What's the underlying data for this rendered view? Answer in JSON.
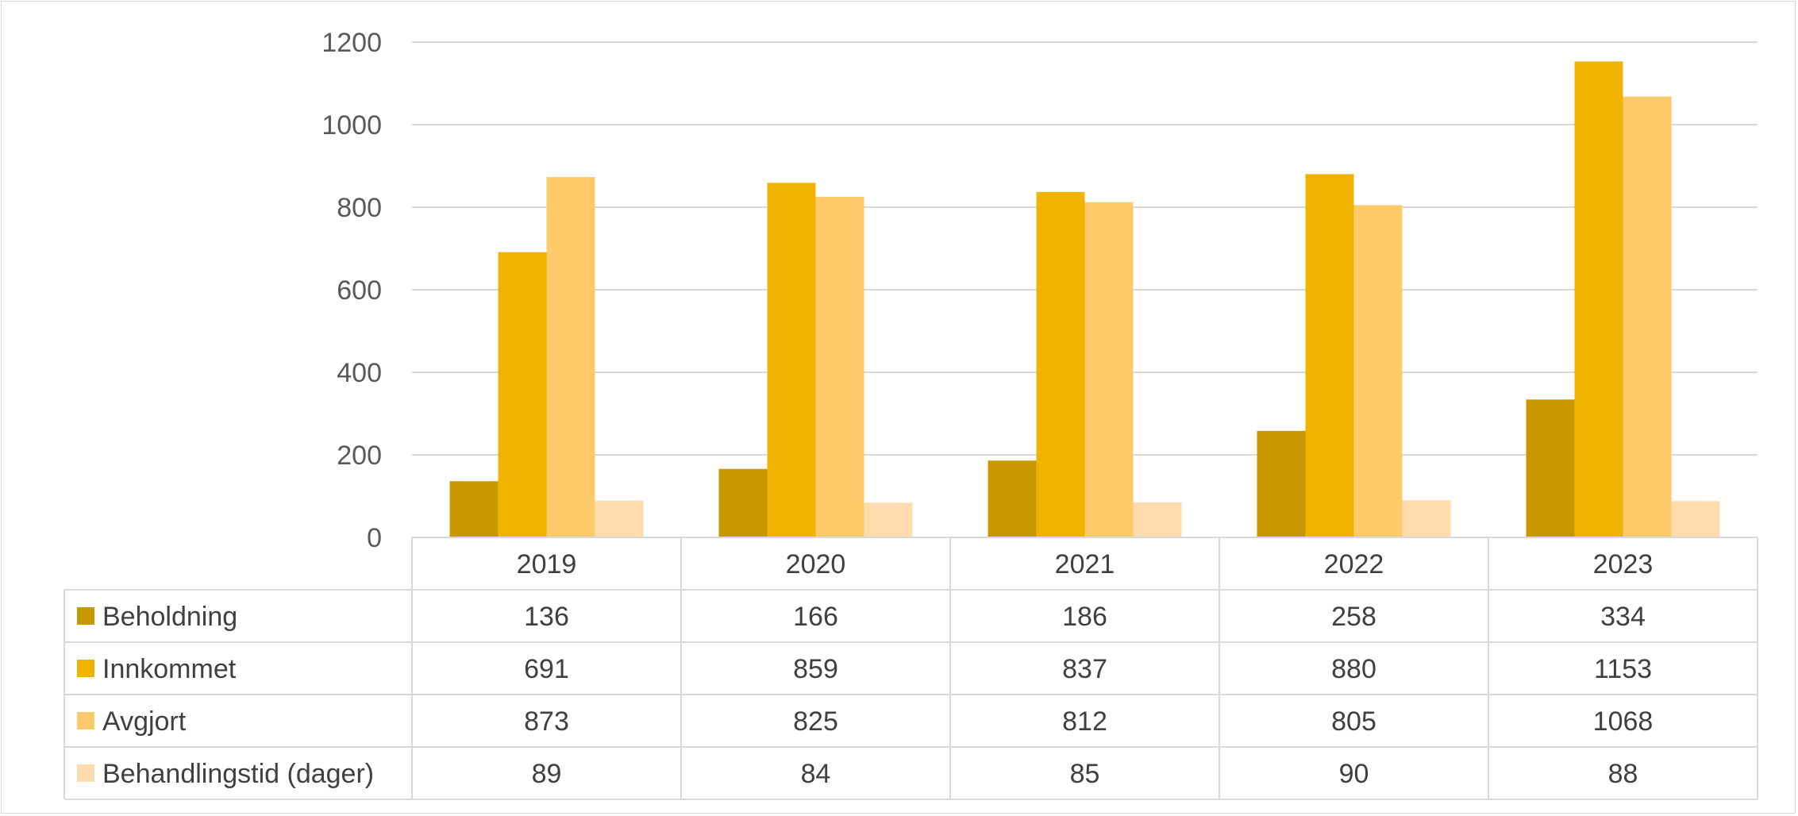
{
  "chart_data": {
    "type": "bar",
    "categories": [
      "2019",
      "2020",
      "2021",
      "2022",
      "2023"
    ],
    "series": [
      {
        "name": "Beholdning",
        "values": [
          136,
          166,
          186,
          258,
          334
        ],
        "color": "#c89800"
      },
      {
        "name": "Innkommet",
        "values": [
          691,
          859,
          837,
          880,
          1153
        ],
        "color": "#f0b400"
      },
      {
        "name": "Avgjort",
        "values": [
          873,
          825,
          812,
          805,
          1068
        ],
        "color": "#ffca6a"
      },
      {
        "name": "Behandlingstid (dager)",
        "values": [
          89,
          84,
          85,
          90,
          88
        ],
        "color": "#ffdcae"
      }
    ],
    "ylim": [
      0,
      1200
    ],
    "yticks": [
      0,
      200,
      400,
      600,
      800,
      1000,
      1200
    ],
    "grid": true,
    "legend": "data-table",
    "title": "",
    "xlabel": "",
    "ylabel": ""
  }
}
